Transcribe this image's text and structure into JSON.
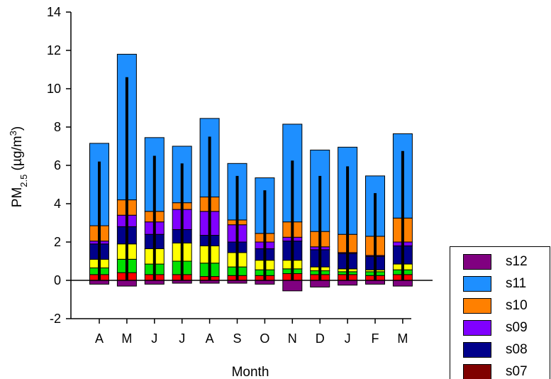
{
  "chart_data": {
    "type": "bar",
    "stacked": true,
    "categories": [
      "A",
      "M",
      "J",
      "J",
      "A",
      "S",
      "O",
      "N",
      "D",
      "J",
      "F",
      "M"
    ],
    "xlabel": "Month",
    "ylabel_main": "PM",
    "ylabel_sub": "2.5",
    "ylabel_unit_open": " (µg/m",
    "ylabel_unit_sup": "3",
    "ylabel_unit_close": ")",
    "ylim": [
      -2,
      14
    ],
    "yticks": [
      -2,
      0,
      2,
      4,
      6,
      8,
      10,
      12,
      14
    ],
    "positive_stack_order": [
      "s01",
      "s02",
      "s03",
      "s04",
      "s05",
      "s06",
      "s07",
      "s08",
      "s09",
      "s10",
      "s11"
    ],
    "series": [
      {
        "name": "s12",
        "color": "#800080",
        "values": [
          -0.2,
          -0.3,
          -0.2,
          -0.15,
          -0.15,
          -0.15,
          -0.2,
          -0.55,
          -0.35,
          -0.25,
          -0.2,
          -0.3
        ]
      },
      {
        "name": "s11",
        "color": "#1E8FFF",
        "values": [
          4.3,
          7.6,
          3.85,
          2.95,
          4.1,
          2.95,
          2.9,
          5.1,
          4.25,
          4.55,
          3.15,
          4.4
        ]
      },
      {
        "name": "s10",
        "color": "#FF8000",
        "values": [
          0.8,
          0.8,
          0.55,
          0.35,
          0.75,
          0.25,
          0.45,
          0.8,
          0.8,
          0.95,
          1.0,
          1.25
        ]
      },
      {
        "name": "s09",
        "color": "#8000FF",
        "values": [
          0.15,
          0.6,
          0.65,
          1.05,
          1.25,
          0.9,
          0.35,
          0.2,
          0.15,
          0.05,
          0.05,
          0.2
        ]
      },
      {
        "name": "s08",
        "color": "#00008B",
        "values": [
          0.8,
          0.9,
          0.75,
          0.7,
          0.55,
          0.55,
          0.6,
          1.0,
          0.9,
          0.8,
          0.7,
          0.95
        ]
      },
      {
        "name": "s07",
        "color": "#800000",
        "values": [
          0.0,
          0.0,
          0.0,
          0.0,
          0.0,
          0.0,
          0.0,
          0.0,
          0.0,
          0.0,
          0.0,
          0.0
        ]
      },
      {
        "name": "",
        "color": "#FFFF00",
        "values": [
          0.45,
          0.8,
          0.8,
          0.95,
          0.9,
          0.75,
          0.5,
          0.45,
          0.2,
          0.15,
          0.1,
          0.3
        ]
      },
      {
        "name": "",
        "color": "#00E000",
        "values": [
          0.35,
          0.7,
          0.55,
          0.7,
          0.7,
          0.45,
          0.3,
          0.25,
          0.2,
          0.15,
          0.2,
          0.25
        ]
      },
      {
        "name": "",
        "color": "#FF0000",
        "values": [
          0.3,
          0.4,
          0.3,
          0.3,
          0.2,
          0.25,
          0.25,
          0.35,
          0.3,
          0.3,
          0.25,
          0.3
        ]
      }
    ],
    "positive_stacks": [
      {
        "colors": [
          "#FF0000",
          "#00E000",
          "#FFFF00",
          "#00008B",
          "#8000FF",
          "#FF8000",
          "#1E8FFF"
        ]
      }
    ],
    "error_bar_top": [
      6.2,
      10.6,
      6.5,
      6.1,
      7.5,
      5.45,
      4.7,
      6.25,
      5.45,
      5.95,
      4.55,
      6.75
    ],
    "legend": [
      {
        "label": "s12",
        "color": "#800080"
      },
      {
        "label": "s11",
        "color": "#1E8FFF"
      },
      {
        "label": "s10",
        "color": "#FF8000"
      },
      {
        "label": "s09",
        "color": "#8000FF"
      },
      {
        "label": "s08",
        "color": "#00008B"
      },
      {
        "label": "s07",
        "color": "#800000"
      }
    ],
    "legend_position": "bottom-right"
  }
}
